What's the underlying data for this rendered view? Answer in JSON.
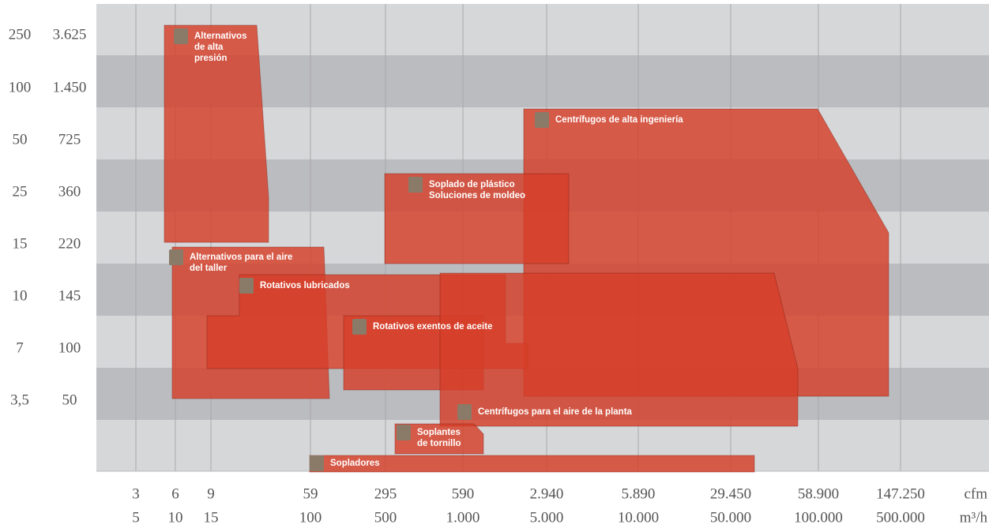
{
  "y_labels_bar": [
    "250",
    "100",
    "50",
    "25",
    "15",
    "10",
    "7",
    "3,5"
  ],
  "y_labels_psi": [
    "3.625",
    "1.450",
    "725",
    "360",
    "220",
    "145",
    "100",
    "50"
  ],
  "x_labels_cfm": [
    "3",
    "6",
    "9",
    "59",
    "295",
    "590",
    "2.940",
    "5.890",
    "29.450",
    "58.900",
    "147.250"
  ],
  "x_labels_m3h": [
    "5",
    "10",
    "15",
    "100",
    "500",
    "1.000",
    "5.000",
    "10.000",
    "50.000",
    "100.000",
    "500.000"
  ],
  "x_unit_cfm": "cfm",
  "x_unit_m3h": "m³/h",
  "regions": [
    {
      "lines": [
        "Alternativos",
        "de alta",
        "presión"
      ]
    },
    {
      "lines": [
        "Centrífugos de alta ingeniería"
      ]
    },
    {
      "lines": [
        "Soplado de plástico",
        "Soluciones de moldeo"
      ]
    },
    {
      "lines": [
        "Alternativos para el aire",
        "del taller"
      ]
    },
    {
      "lines": [
        "Rotativos lubricados"
      ]
    },
    {
      "lines": [
        "Rotativos exentos de aceite"
      ]
    },
    {
      "lines": [
        "Centrífugos para el aire de la planta"
      ]
    },
    {
      "lines": [
        "Soplantes",
        "de tornillo"
      ]
    },
    {
      "lines": [
        "Sopladores"
      ]
    }
  ]
}
